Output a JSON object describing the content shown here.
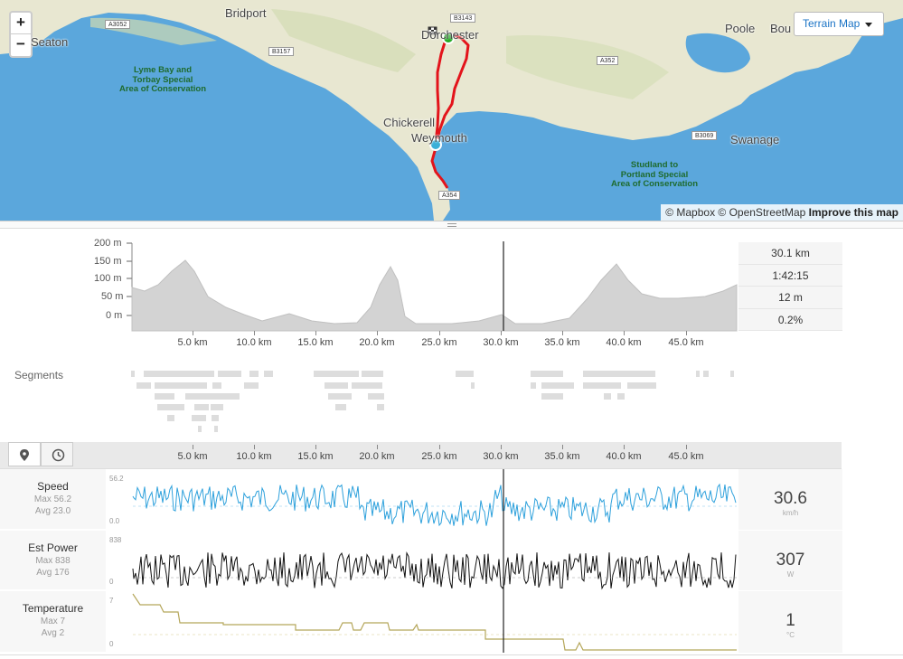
{
  "map": {
    "zoom_in": "+",
    "zoom_out": "−",
    "map_type": "Terrain Map",
    "attribution": "© Mapbox © OpenStreetMap",
    "improve": "Improve this map",
    "places": {
      "bridport": "Bridport",
      "seaton": "Seaton",
      "dorchester": "Dorchester",
      "poole": "Poole",
      "bournemouth": "Bou",
      "chickerell": "Chickerell",
      "weymouth": "Weymouth",
      "swanage": "Swanage"
    },
    "roads": [
      "A3052",
      "B3157",
      "B3143",
      "A352",
      "B3069",
      "A354"
    ],
    "sea_labels": {
      "lyme": "Lyme Bay and\nTorbay Special\nArea of Conservation",
      "studland": "Studland to\nPortland Special\nArea of Conservation"
    },
    "colors": {
      "sea": "#5ba7dc",
      "land": "#e7e6cf",
      "route": "#e3141b",
      "start": "#22aa22",
      "cursor": "#3ab0d8"
    }
  },
  "elevation": {
    "y_labels": [
      "200 m",
      "150 m",
      "100 m",
      "50 m",
      "0 m"
    ],
    "km_labels": [
      "5.0 km",
      "10.0 km",
      "15.0 km",
      "20.0 km",
      "25.0 km",
      "30.0 km",
      "35.0 km",
      "40.0 km",
      "45.0 km"
    ],
    "stats": [
      "30.1 km",
      "1:42:15",
      "12 m",
      "0.2%"
    ]
  },
  "segments": {
    "title": "Segments"
  },
  "streams": {
    "rows": [
      {
        "name": "Speed",
        "max": "Max 56.2",
        "avg": "Avg 23.0",
        "value": "30.6",
        "unit": "km/h",
        "ymax": "56.2",
        "ymin": "0.0",
        "color": "#2ea1dc"
      },
      {
        "name": "Est Power",
        "max": "Max 838",
        "avg": "Avg 176",
        "value": "307",
        "unit": "W",
        "ymax": "838",
        "ymin": "0",
        "color": "#111111"
      },
      {
        "name": "Temperature",
        "max": "Max 7",
        "avg": "Avg 2",
        "value": "1",
        "unit": "°C",
        "ymax": "7",
        "ymin": "0",
        "color": "#b5a65a"
      }
    ]
  }
}
